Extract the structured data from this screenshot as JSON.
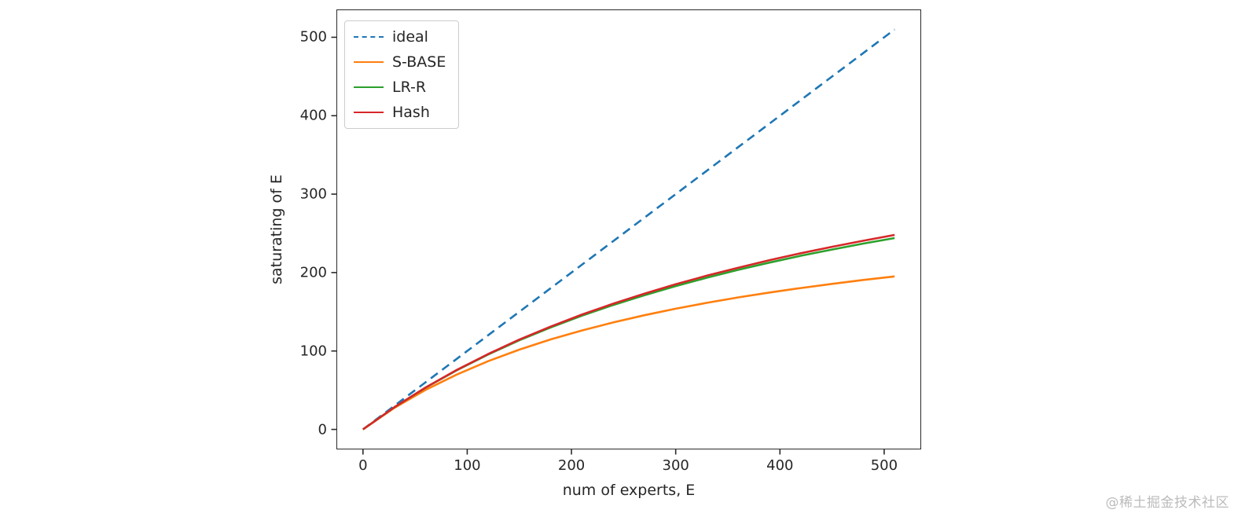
{
  "watermark": {
    "text": "@稀土掘金技术社区"
  },
  "chart_data": {
    "type": "line",
    "title": "",
    "xlabel": "num of experts, E",
    "ylabel": "saturating of E",
    "xlim": [
      -25.5,
      535.5
    ],
    "ylim": [
      -25.5,
      535.5
    ],
    "xticks": [
      0,
      100,
      200,
      300,
      400,
      500
    ],
    "yticks": [
      0,
      100,
      200,
      300,
      400,
      500
    ],
    "grid": false,
    "legend_position": "upper left",
    "x": [
      0,
      30,
      60,
      90,
      120,
      150,
      180,
      210,
      240,
      270,
      300,
      330,
      360,
      390,
      420,
      450,
      480,
      510
    ],
    "series": [
      {
        "name": "ideal",
        "color": "#1f77b4",
        "style": "dashed",
        "x": [
          0,
          510
        ],
        "values": [
          0,
          510
        ]
      },
      {
        "name": "S-BASE",
        "color": "#ff7f0e",
        "style": "solid",
        "values": [
          0,
          27.4,
          50.4,
          70.0,
          87.0,
          101.7,
          114.7,
          126.2,
          136.4,
          145.6,
          153.9,
          161.4,
          168.3,
          174.6,
          180.3,
          185.6,
          190.6,
          195.1
        ]
      },
      {
        "name": "LR-R",
        "color": "#2ca02c",
        "style": "solid",
        "values": [
          0,
          28.2,
          53.2,
          75.5,
          95.5,
          113.6,
          130.0,
          145.0,
          158.6,
          171.2,
          182.8,
          193.5,
          203.5,
          212.7,
          221.4,
          229.4,
          237.0,
          244.0
        ]
      },
      {
        "name": "Hash",
        "color": "#d62728",
        "style": "solid",
        "values": [
          0,
          28.2,
          53.4,
          75.9,
          96.1,
          114.5,
          131.1,
          146.4,
          160.3,
          173.2,
          185.1,
          196.1,
          206.2,
          215.8,
          224.6,
          232.9,
          240.6,
          248.0
        ]
      }
    ]
  }
}
